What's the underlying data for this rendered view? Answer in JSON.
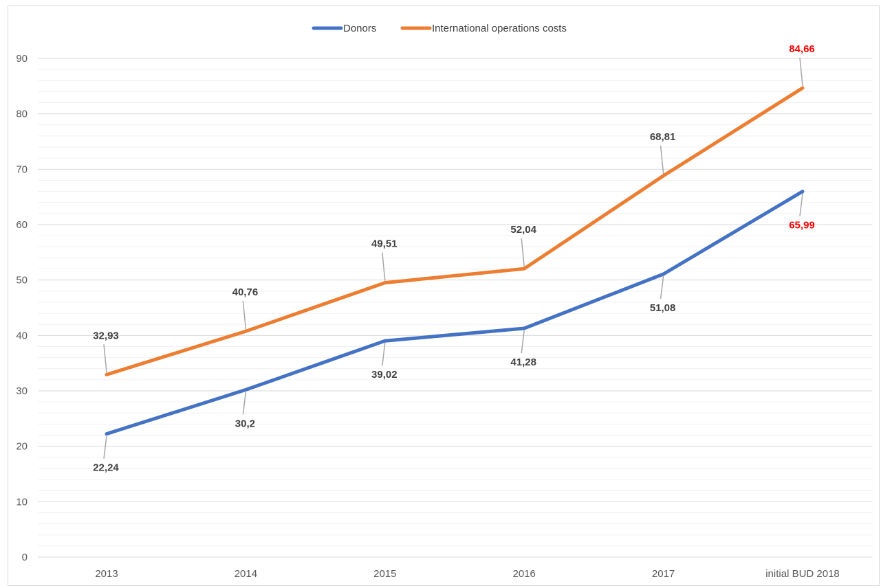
{
  "chart_data": {
    "type": "line",
    "title": "",
    "xlabel": "",
    "ylabel": "",
    "categories": [
      "2013",
      "2014",
      "2015",
      "2016",
      "2017",
      "initial BUD 2018"
    ],
    "ylim": [
      0,
      90
    ],
    "yticks": [
      0,
      10,
      20,
      30,
      40,
      50,
      60,
      70,
      80,
      90
    ],
    "minor_gridlines": true,
    "legend_position": "top-center",
    "series": [
      {
        "name": "Donors",
        "color": "#4472c4",
        "values": [
          22.24,
          30.2,
          39.02,
          41.28,
          51.08,
          65.99
        ],
        "labels": [
          "22,24",
          "30,2",
          "39,02",
          "41,28",
          "51,08",
          "65,99"
        ],
        "label_side": "below"
      },
      {
        "name": "International operations costs",
        "color": "#ed7d31",
        "values": [
          32.93,
          40.76,
          49.51,
          52.04,
          68.81,
          84.66
        ],
        "labels": [
          "32,93",
          "40,76",
          "49,51",
          "52,04",
          "68,81",
          "84,66"
        ],
        "label_side": "above"
      }
    ],
    "highlight_label_color": "#ff0000",
    "highlight_index": 5
  }
}
